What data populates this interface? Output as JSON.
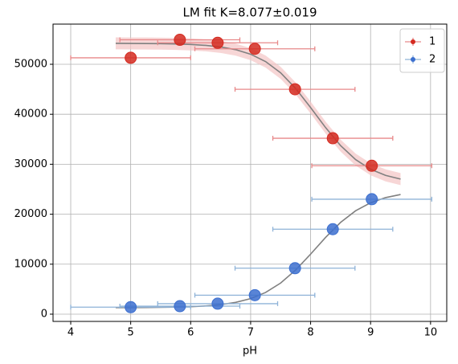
{
  "chart_data": {
    "type": "scatter",
    "title": "LM fit K=8.077±0.019",
    "xlabel": "pH",
    "xlim": [
      3.705,
      10.27
    ],
    "ylim": [
      -1450,
      58040
    ],
    "xticks": [
      4,
      5,
      6,
      7,
      8,
      9,
      10
    ],
    "yticks": [
      0,
      10000,
      20000,
      30000,
      40000,
      50000
    ],
    "grid": true,
    "legend": "upper right",
    "fit_color": "#808080",
    "fit_x": [
      4.75,
      5.0,
      5.25,
      5.5,
      5.75,
      6.0,
      6.25,
      6.5,
      6.75,
      7.0,
      7.25,
      7.5,
      7.75,
      8.0,
      8.25,
      8.5,
      8.75,
      9.0,
      9.25,
      9.5
    ],
    "series": [
      {
        "name": "1",
        "color": "#d42a20",
        "error_color": "#e8898a",
        "band_color": "#f4c4c4",
        "x": [
          5.0,
          5.82,
          6.45,
          7.07,
          7.74,
          8.37,
          9.02
        ],
        "values": [
          51300,
          54900,
          54300,
          53100,
          45000,
          35200,
          29700
        ],
        "xerr": [
          1.0,
          1.0,
          1.0,
          1.0,
          1.0,
          1.0,
          1.0
        ],
        "fit": [
          54187,
          54176,
          54158,
          54126,
          54068,
          53966,
          53785,
          53472,
          52931,
          52020,
          50542,
          48292,
          45170,
          41344,
          37331,
          33727,
          30938,
          28996,
          27774,
          27026
        ],
        "band_halfwidth": 1200
      },
      {
        "name": "2",
        "color": "#3c6fcf",
        "error_color": "#8fb3d8",
        "x": [
          5.0,
          5.82,
          6.45,
          7.07,
          7.74,
          8.37,
          9.02
        ],
        "values": [
          1400,
          1600,
          2100,
          3800,
          9200,
          17000,
          23000
        ],
        "xerr": [
          1.0,
          1.0,
          1.0,
          1.0,
          1.0,
          1.0,
          1.0
        ],
        "fit": [
          1311,
          1320,
          1335,
          1362,
          1410,
          1495,
          1645,
          1906,
          2358,
          3117,
          4348,
          6223,
          8825,
          12014,
          15358,
          18361,
          20685,
          22295,
          23322,
          23945
        ]
      }
    ]
  }
}
